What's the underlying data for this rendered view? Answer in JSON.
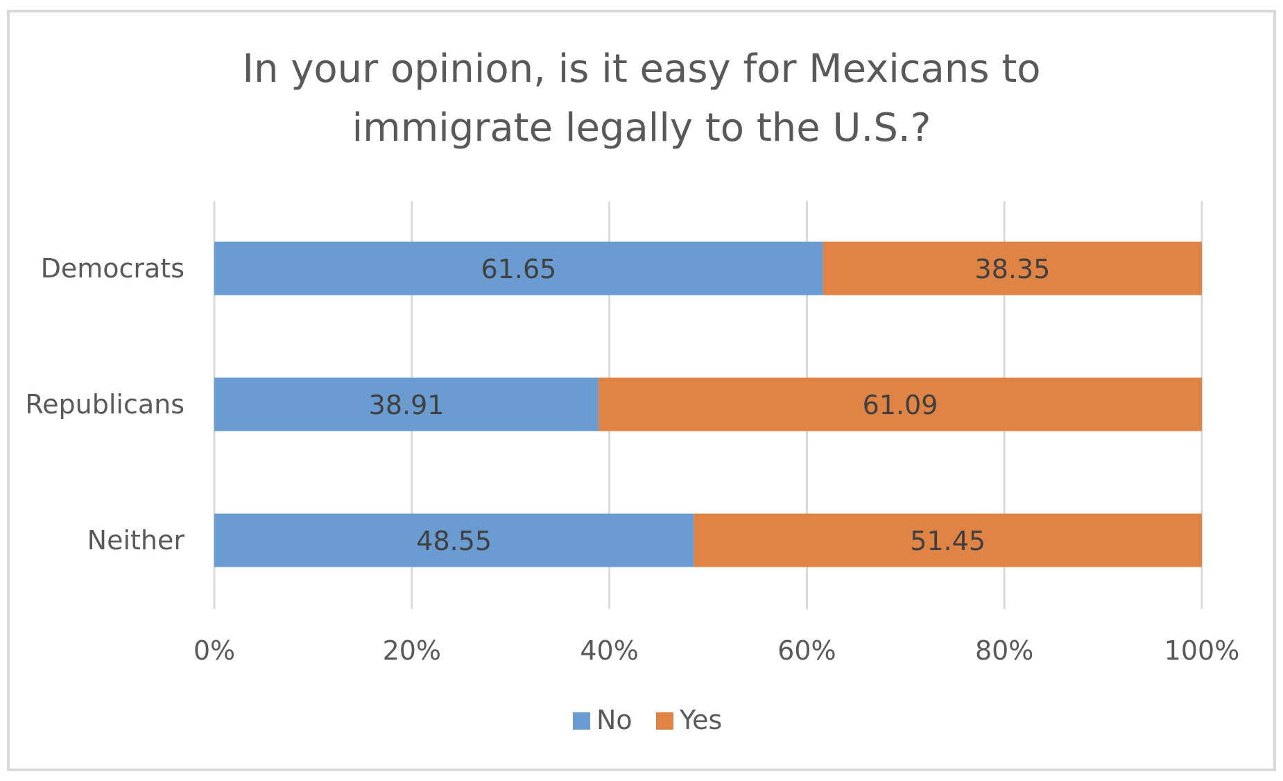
{
  "chart_data": {
    "type": "bar",
    "orientation": "horizontal",
    "stacked": "percent",
    "title": "In your opinion, is it easy for Mexicans to immigrate legally to the U.S.?",
    "title_lines": [
      "In your opinion, is it easy for Mexicans to",
      "immigrate legally to the U.S.?"
    ],
    "categories": [
      "Democrats",
      "Republicans",
      "Neither"
    ],
    "series": [
      {
        "name": "No",
        "values": [
          61.65,
          38.91,
          48.55
        ],
        "color": "#6a9bd1"
      },
      {
        "name": "Yes",
        "values": [
          38.35,
          61.09,
          51.45
        ],
        "color": "#e08446"
      }
    ],
    "xlim": [
      0,
      100
    ],
    "x_ticks": [
      "0%",
      "20%",
      "40%",
      "60%",
      "80%",
      "100%"
    ],
    "xlabel": "",
    "ylabel": "",
    "grid": true,
    "legend_position": "bottom"
  }
}
